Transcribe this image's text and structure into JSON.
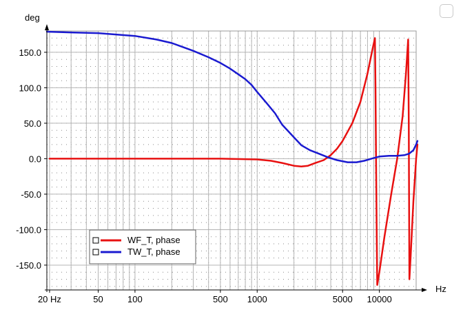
{
  "chart_data": {
    "type": "line",
    "x_scale": "log",
    "ylabel": "deg",
    "xlabel": "Hz",
    "xlim": [
      19,
      20000
    ],
    "ylim": [
      -185,
      180
    ],
    "grid": true,
    "legend_position": "lower-left",
    "x_ticks": [
      {
        "value": 20,
        "label": "20 Hz"
      },
      {
        "value": 50,
        "label": "50"
      },
      {
        "value": 100,
        "label": "100"
      },
      {
        "value": 500,
        "label": "500"
      },
      {
        "value": 1000,
        "label": "1000"
      },
      {
        "value": 5000,
        "label": "5000"
      },
      {
        "value": 10000,
        "label": "10000"
      }
    ],
    "y_ticks": [
      {
        "value": 150,
        "label": "150.0"
      },
      {
        "value": 100,
        "label": "100.0"
      },
      {
        "value": 50,
        "label": "50.0"
      },
      {
        "value": 0,
        "label": "0.0"
      },
      {
        "value": -50,
        "label": "-50.0"
      },
      {
        "value": -100,
        "label": "-100.0"
      },
      {
        "value": -150,
        "label": "-150.0"
      }
    ],
    "series": [
      {
        "name": "WF_T, phase",
        "color": "#e81010",
        "points": [
          [
            20,
            0
          ],
          [
            100,
            0
          ],
          [
            500,
            0
          ],
          [
            1000,
            -1
          ],
          [
            1300,
            -3
          ],
          [
            1600,
            -6
          ],
          [
            2000,
            -10
          ],
          [
            2300,
            -11
          ],
          [
            2600,
            -10
          ],
          [
            3000,
            -6
          ],
          [
            3500,
            -2
          ],
          [
            4000,
            5
          ],
          [
            4500,
            14
          ],
          [
            5000,
            25
          ],
          [
            6000,
            50
          ],
          [
            7000,
            80
          ],
          [
            8000,
            120
          ],
          [
            8800,
            155
          ],
          [
            9200,
            170
          ],
          [
            9300,
            100
          ],
          [
            9400,
            0
          ],
          [
            9500,
            -100
          ],
          [
            9600,
            -178
          ],
          [
            10000,
            -160
          ],
          [
            11000,
            -110
          ],
          [
            12500,
            -50
          ],
          [
            14000,
            0
          ],
          [
            15500,
            60
          ],
          [
            16500,
            120
          ],
          [
            17200,
            168
          ],
          [
            17400,
            50
          ],
          [
            17500,
            -50
          ],
          [
            17600,
            -170
          ],
          [
            18000,
            -140
          ],
          [
            19000,
            -60
          ],
          [
            20000,
            0
          ],
          [
            20500,
            20
          ]
        ]
      },
      {
        "name": "TW_T, phase",
        "color": "#1a1ad0",
        "points": [
          [
            19,
            179
          ],
          [
            30,
            178
          ],
          [
            50,
            177
          ],
          [
            100,
            173
          ],
          [
            150,
            168
          ],
          [
            200,
            163
          ],
          [
            300,
            152
          ],
          [
            400,
            143
          ],
          [
            500,
            135
          ],
          [
            600,
            127
          ],
          [
            700,
            119
          ],
          [
            800,
            112
          ],
          [
            900,
            104
          ],
          [
            1000,
            94
          ],
          [
            1200,
            78
          ],
          [
            1400,
            64
          ],
          [
            1600,
            48
          ],
          [
            2000,
            30
          ],
          [
            2300,
            19
          ],
          [
            2700,
            12
          ],
          [
            3200,
            7
          ],
          [
            3800,
            2
          ],
          [
            4500,
            -2
          ],
          [
            5500,
            -5
          ],
          [
            6500,
            -5
          ],
          [
            7500,
            -3
          ],
          [
            9000,
            1
          ],
          [
            10000,
            3
          ],
          [
            12000,
            4
          ],
          [
            14000,
            4
          ],
          [
            16000,
            5
          ],
          [
            17500,
            7
          ],
          [
            19000,
            12
          ],
          [
            20000,
            20
          ],
          [
            20500,
            25
          ]
        ]
      }
    ]
  }
}
